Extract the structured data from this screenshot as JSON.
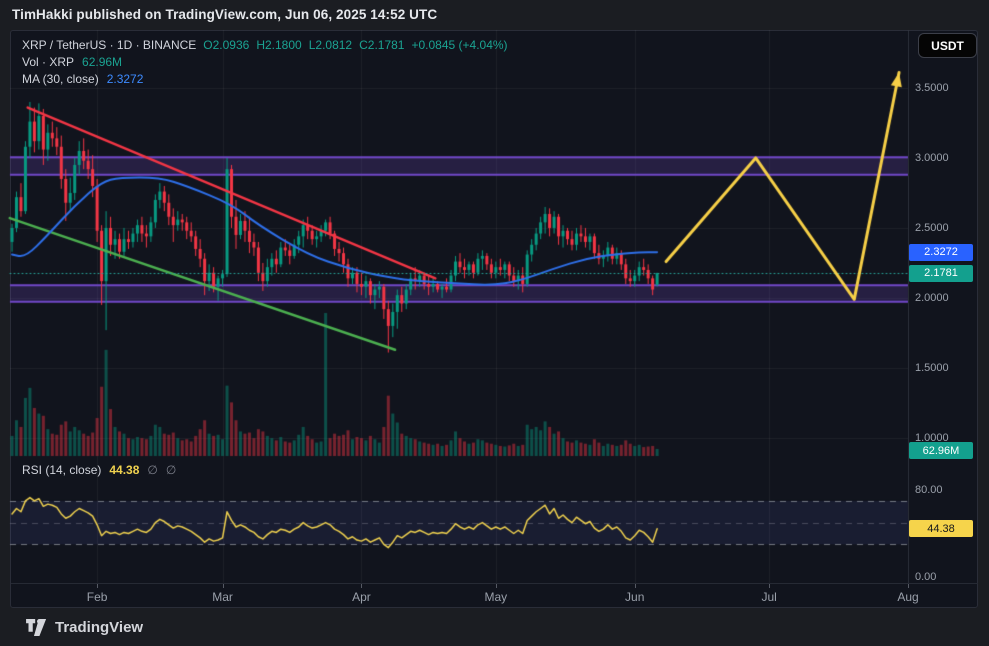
{
  "banner": {
    "text": "TimHakki published on TradingView.com, Jun 06, 2025 14:52 UTC"
  },
  "panel": {
    "legend": {
      "title": "XRP / TetherUS · 1D · BINANCE",
      "ohlc": [
        {
          "label": "O",
          "value": "2.0936"
        },
        {
          "label": "H",
          "value": "2.1800"
        },
        {
          "label": "L",
          "value": "2.0812"
        },
        {
          "label": "C",
          "value": "2.1781"
        }
      ],
      "change": "+0.0845 (+4.04%)",
      "vol_label": "Vol · XRP",
      "vol_value": "62.96M",
      "ma_label": "MA (30, close)",
      "ma_value": "2.3272"
    },
    "rsi_legend": {
      "label": "RSI (14, close)",
      "value": "44.38",
      "empty1": "∅",
      "empty2": "∅"
    },
    "currency_button": "USDT"
  },
  "footer": {
    "brand": "TradingView"
  },
  "colors": {
    "up": "#089981",
    "down": "#F23645",
    "volume_up": "rgba(8,153,129,0.45)",
    "volume_down": "rgba(242,54,69,0.45)",
    "ma": "#2E6FE8",
    "trend_red": "#F23645",
    "trend_green": "#4CAF50",
    "projection": "#F6CF47",
    "band_line": "#7048C8",
    "band_fill": "rgba(112,72,200,0.22)",
    "price_line": "#26A69A",
    "rsi": "#F0D24F",
    "grid": "rgba(255,255,255,0.055)",
    "rsi_fill": "rgba(76,82,175,0.14)",
    "rsi_dash": "rgba(150,153,162,0.75)",
    "rsi_dash_mid": "rgba(150,153,162,0.38)"
  },
  "chart_data": {
    "type": "candlestick",
    "title": "XRP / TetherUS 1D BINANCE",
    "ylim": [
      0.871,
      3.914
    ],
    "price_ticks": [
      "3.5000",
      "3.0000",
      "2.5000",
      "2.0000",
      "1.5000",
      "1.0000"
    ],
    "rsi_ticks": [
      "80.00",
      "0.00"
    ],
    "months": [
      [
        "Feb",
        19
      ],
      [
        "Mar",
        47
      ],
      [
        "Apr",
        78
      ],
      [
        "May",
        108
      ],
      [
        "Jun",
        139
      ],
      [
        "Jul",
        169
      ],
      [
        "Aug",
        200
      ]
    ],
    "last_price": 2.1781,
    "ma_last": 2.3272,
    "rsi_last": 44.38,
    "last_volume_m": 62.96,
    "volume_max_m": 1280,
    "rsi_levels": [
      70,
      50,
      30
    ],
    "rsi_band": [
      30,
      70
    ],
    "bands": [
      {
        "from": 2.88,
        "to": 3.005
      },
      {
        "from": 1.973,
        "to": 2.09
      }
    ],
    "trendlines": [
      {
        "color": "trend_red",
        "i1": 3.5,
        "p1": 3.36,
        "i2": 94.5,
        "p2": 2.14
      },
      {
        "color": "trend_green",
        "i1": -0.5,
        "p1": 2.57,
        "i2": 85.5,
        "p2": 1.63
      }
    ],
    "projection": [
      [
        146,
        2.26
      ],
      [
        166,
        3.0
      ],
      [
        188,
        1.99
      ],
      [
        198,
        3.61
      ]
    ],
    "ma_points": [
      [
        0,
        2.31
      ],
      [
        3,
        2.29
      ],
      [
        8,
        2.45
      ],
      [
        14,
        2.66
      ],
      [
        20,
        2.83
      ],
      [
        24,
        2.86
      ],
      [
        33,
        2.86
      ],
      [
        39,
        2.8
      ],
      [
        49,
        2.67
      ],
      [
        55,
        2.52
      ],
      [
        66,
        2.31
      ],
      [
        75,
        2.21
      ],
      [
        84,
        2.145
      ],
      [
        91,
        2.12
      ],
      [
        99,
        2.105
      ],
      [
        107,
        2.09
      ],
      [
        113,
        2.12
      ],
      [
        121,
        2.21
      ],
      [
        128,
        2.28
      ],
      [
        135,
        2.315
      ],
      [
        140,
        2.325
      ],
      [
        144,
        2.3272
      ]
    ],
    "candles": [
      [
        2.4,
        2.53,
        2.33,
        2.5
      ],
      [
        2.5,
        2.76,
        2.47,
        2.72
      ],
      [
        2.72,
        2.82,
        2.58,
        2.62
      ],
      [
        2.62,
        3.12,
        2.6,
        3.08
      ],
      [
        3.08,
        3.4,
        3.0,
        3.26
      ],
      [
        3.26,
        3.36,
        3.04,
        3.12
      ],
      [
        3.12,
        3.39,
        3.06,
        3.3
      ],
      [
        3.3,
        3.35,
        2.95,
        3.06
      ],
      [
        3.06,
        3.24,
        2.98,
        3.18
      ],
      [
        3.18,
        3.26,
        3.08,
        3.14
      ],
      [
        3.14,
        3.22,
        3.02,
        3.08
      ],
      [
        3.08,
        3.16,
        2.78,
        2.85
      ],
      [
        2.85,
        2.92,
        2.55,
        2.68
      ],
      [
        2.68,
        2.86,
        2.62,
        2.75
      ],
      [
        2.75,
        3.0,
        2.7,
        2.95
      ],
      [
        2.95,
        3.12,
        2.88,
        3.05
      ],
      [
        3.05,
        3.14,
        2.92,
        2.98
      ],
      [
        2.98,
        3.06,
        2.85,
        2.92
      ],
      [
        2.92,
        3.02,
        2.72,
        2.8
      ],
      [
        2.8,
        2.85,
        2.4,
        2.48
      ],
      [
        2.48,
        2.52,
        1.95,
        2.12
      ],
      [
        2.12,
        2.62,
        1.77,
        2.5
      ],
      [
        2.5,
        2.58,
        2.3,
        2.38
      ],
      [
        2.38,
        2.48,
        2.28,
        2.42
      ],
      [
        2.42,
        2.46,
        2.28,
        2.33
      ],
      [
        2.33,
        2.5,
        2.3,
        2.42
      ],
      [
        2.42,
        2.48,
        2.35,
        2.4
      ],
      [
        2.4,
        2.5,
        2.36,
        2.46
      ],
      [
        2.46,
        2.56,
        2.4,
        2.52
      ],
      [
        2.52,
        2.58,
        2.4,
        2.46
      ],
      [
        2.46,
        2.52,
        2.36,
        2.44
      ],
      [
        2.44,
        2.58,
        2.4,
        2.54
      ],
      [
        2.54,
        2.74,
        2.5,
        2.7
      ],
      [
        2.7,
        2.82,
        2.64,
        2.76
      ],
      [
        2.76,
        2.8,
        2.62,
        2.68
      ],
      [
        2.68,
        2.74,
        2.52,
        2.58
      ],
      [
        2.58,
        2.64,
        2.4,
        2.52
      ],
      [
        2.52,
        2.62,
        2.48,
        2.56
      ],
      [
        2.56,
        2.6,
        2.48,
        2.54
      ],
      [
        2.54,
        2.58,
        2.42,
        2.48
      ],
      [
        2.48,
        2.54,
        2.4,
        2.44
      ],
      [
        2.44,
        2.48,
        2.3,
        2.35
      ],
      [
        2.35,
        2.42,
        2.22,
        2.28
      ],
      [
        2.28,
        2.32,
        2.02,
        2.12
      ],
      [
        2.12,
        2.24,
        2.05,
        2.18
      ],
      [
        2.18,
        2.22,
        2.04,
        2.08
      ],
      [
        2.08,
        2.16,
        1.98,
        2.14
      ],
      [
        2.14,
        2.2,
        2.08,
        2.17
      ],
      [
        2.17,
        3.0,
        2.15,
        2.92
      ],
      [
        2.92,
        2.95,
        2.5,
        2.58
      ],
      [
        2.58,
        2.7,
        2.35,
        2.45
      ],
      [
        2.45,
        2.6,
        2.42,
        2.55
      ],
      [
        2.55,
        2.62,
        2.4,
        2.48
      ],
      [
        2.48,
        2.58,
        2.32,
        2.4
      ],
      [
        2.4,
        2.46,
        2.3,
        2.36
      ],
      [
        2.36,
        2.4,
        2.12,
        2.18
      ],
      [
        2.18,
        2.25,
        2.05,
        2.12
      ],
      [
        2.12,
        2.28,
        2.08,
        2.22
      ],
      [
        2.22,
        2.32,
        2.16,
        2.28
      ],
      [
        2.28,
        2.34,
        2.18,
        2.24
      ],
      [
        2.24,
        2.4,
        2.22,
        2.36
      ],
      [
        2.36,
        2.42,
        2.3,
        2.34
      ],
      [
        2.34,
        2.38,
        2.24,
        2.3
      ],
      [
        2.3,
        2.42,
        2.28,
        2.38
      ],
      [
        2.38,
        2.48,
        2.32,
        2.44
      ],
      [
        2.44,
        2.56,
        2.36,
        2.52
      ],
      [
        2.52,
        2.58,
        2.42,
        2.48
      ],
      [
        2.48,
        2.52,
        2.38,
        2.42
      ],
      [
        2.42,
        2.48,
        2.36,
        2.44
      ],
      [
        2.44,
        2.52,
        2.4,
        2.48
      ],
      [
        2.48,
        2.56,
        2.44,
        2.54
      ],
      [
        2.54,
        2.58,
        2.42,
        2.46
      ],
      [
        2.46,
        2.48,
        2.3,
        2.35
      ],
      [
        2.35,
        2.4,
        2.26,
        2.32
      ],
      [
        2.32,
        2.36,
        2.18,
        2.24
      ],
      [
        2.24,
        2.28,
        2.08,
        2.14
      ],
      [
        2.14,
        2.22,
        2.1,
        2.18
      ],
      [
        2.18,
        2.22,
        2.04,
        2.1
      ],
      [
        2.1,
        2.18,
        2.02,
        2.08
      ],
      [
        2.08,
        2.16,
        2.0,
        2.12
      ],
      [
        2.12,
        2.14,
        1.96,
        2.02
      ],
      [
        2.02,
        2.1,
        1.92,
        2.06
      ],
      [
        2.06,
        2.12,
        2.0,
        2.08
      ],
      [
        2.08,
        2.1,
        1.85,
        1.92
      ],
      [
        1.92,
        1.98,
        1.61,
        1.8
      ],
      [
        1.8,
        1.96,
        1.72,
        1.9
      ],
      [
        1.9,
        2.06,
        1.78,
        2.02
      ],
      [
        2.02,
        2.08,
        1.9,
        1.96
      ],
      [
        1.96,
        2.1,
        1.92,
        2.06
      ],
      [
        2.06,
        2.18,
        2.02,
        2.14
      ],
      [
        2.14,
        2.22,
        2.06,
        2.12
      ],
      [
        2.12,
        2.2,
        2.08,
        2.16
      ],
      [
        2.16,
        2.18,
        2.06,
        2.1
      ],
      [
        2.1,
        2.16,
        2.02,
        2.08
      ],
      [
        2.08,
        2.14,
        2.04,
        2.1
      ],
      [
        2.1,
        2.12,
        2.04,
        2.06
      ],
      [
        2.06,
        2.1,
        2.0,
        2.08
      ],
      [
        2.08,
        2.14,
        2.04,
        2.06
      ],
      [
        2.06,
        2.2,
        2.04,
        2.16
      ],
      [
        2.16,
        2.3,
        2.12,
        2.26
      ],
      [
        2.26,
        2.32,
        2.18,
        2.22
      ],
      [
        2.22,
        2.28,
        2.14,
        2.2
      ],
      [
        2.2,
        2.26,
        2.16,
        2.24
      ],
      [
        2.24,
        2.26,
        2.14,
        2.18
      ],
      [
        2.18,
        2.32,
        2.16,
        2.28
      ],
      [
        2.28,
        2.34,
        2.2,
        2.3
      ],
      [
        2.3,
        2.32,
        2.2,
        2.24
      ],
      [
        2.24,
        2.28,
        2.14,
        2.18
      ],
      [
        2.18,
        2.26,
        2.14,
        2.22
      ],
      [
        2.22,
        2.28,
        2.16,
        2.2
      ],
      [
        2.2,
        2.26,
        2.14,
        2.24
      ],
      [
        2.24,
        2.26,
        2.12,
        2.16
      ],
      [
        2.16,
        2.22,
        2.08,
        2.12
      ],
      [
        2.12,
        2.2,
        2.06,
        2.16
      ],
      [
        2.16,
        2.22,
        2.04,
        2.1
      ],
      [
        2.1,
        2.34,
        2.08,
        2.31
      ],
      [
        2.31,
        2.42,
        2.26,
        2.38
      ],
      [
        2.38,
        2.5,
        2.34,
        2.46
      ],
      [
        2.46,
        2.58,
        2.42,
        2.54
      ],
      [
        2.54,
        2.65,
        2.46,
        2.6
      ],
      [
        2.6,
        2.64,
        2.44,
        2.5
      ],
      [
        2.5,
        2.62,
        2.46,
        2.58
      ],
      [
        2.58,
        2.6,
        2.38,
        2.44
      ],
      [
        2.44,
        2.52,
        2.36,
        2.48
      ],
      [
        2.48,
        2.5,
        2.38,
        2.42
      ],
      [
        2.42,
        2.48,
        2.34,
        2.38
      ],
      [
        2.38,
        2.5,
        2.34,
        2.46
      ],
      [
        2.46,
        2.52,
        2.4,
        2.44
      ],
      [
        2.44,
        2.5,
        2.36,
        2.4
      ],
      [
        2.4,
        2.46,
        2.34,
        2.44
      ],
      [
        2.44,
        2.46,
        2.28,
        2.32
      ],
      [
        2.32,
        2.38,
        2.24,
        2.28
      ],
      [
        2.28,
        2.34,
        2.22,
        2.3
      ],
      [
        2.3,
        2.4,
        2.26,
        2.36
      ],
      [
        2.36,
        2.38,
        2.24,
        2.28
      ],
      [
        2.28,
        2.36,
        2.24,
        2.32
      ],
      [
        2.32,
        2.34,
        2.2,
        2.24
      ],
      [
        2.24,
        2.28,
        2.1,
        2.14
      ],
      [
        2.14,
        2.2,
        2.08,
        2.12
      ],
      [
        2.12,
        2.2,
        2.08,
        2.16
      ],
      [
        2.16,
        2.26,
        2.12,
        2.22
      ],
      [
        2.22,
        2.28,
        2.16,
        2.2
      ],
      [
        2.2,
        2.24,
        2.1,
        2.14
      ],
      [
        2.14,
        2.16,
        2.02,
        2.06
      ],
      [
        2.0936,
        2.18,
        2.0812,
        2.1781
      ]
    ],
    "volume_m": [
      180,
      320,
      260,
      520,
      610,
      430,
      380,
      360,
      240,
      200,
      190,
      280,
      310,
      220,
      260,
      230,
      200,
      180,
      210,
      340,
      620,
      950,
      420,
      260,
      220,
      200,
      160,
      150,
      170,
      160,
      150,
      180,
      280,
      260,
      200,
      190,
      210,
      160,
      140,
      150,
      130,
      180,
      240,
      320,
      200,
      180,
      190,
      150,
      630,
      480,
      320,
      220,
      200,
      210,
      160,
      240,
      220,
      180,
      160,
      140,
      170,
      130,
      120,
      140,
      190,
      260,
      180,
      150,
      120,
      130,
      1280,
      160,
      200,
      180,
      190,
      230,
      150,
      170,
      160,
      140,
      180,
      150,
      120,
      260,
      540,
      380,
      300,
      200,
      180,
      160,
      150,
      130,
      120,
      110,
      100,
      110,
      90,
      100,
      140,
      220,
      160,
      130,
      110,
      120,
      150,
      140,
      120,
      110,
      100,
      90,
      85,
      95,
      110,
      90,
      100,
      280,
      240,
      260,
      230,
      310,
      260,
      200,
      220,
      160,
      130,
      120,
      140,
      120,
      110,
      100,
      150,
      120,
      90,
      110,
      100,
      90,
      100,
      140,
      110,
      90,
      100,
      80,
      85,
      90,
      62.96
    ],
    "rsi": [
      58,
      63,
      60,
      70,
      73,
      70,
      72,
      65,
      67,
      66,
      64,
      58,
      54,
      56,
      60,
      63,
      61,
      59,
      56,
      48,
      38,
      42,
      40,
      41,
      39,
      41,
      40,
      42,
      44,
      42,
      41,
      44,
      50,
      53,
      51,
      48,
      45,
      47,
      46,
      44,
      42,
      39,
      36,
      32,
      35,
      33,
      34,
      36,
      60,
      52,
      46,
      48,
      46,
      43,
      41,
      37,
      35,
      39,
      42,
      41,
      44,
      43,
      41,
      44,
      46,
      50,
      47,
      45,
      46,
      48,
      50,
      48,
      44,
      42,
      39,
      35,
      37,
      34,
      33,
      35,
      32,
      34,
      36,
      30,
      27,
      32,
      38,
      36,
      39,
      42,
      41,
      43,
      41,
      39,
      41,
      40,
      41,
      40,
      44,
      49,
      46,
      44,
      46,
      44,
      48,
      50,
      47,
      44,
      46,
      44,
      46,
      43,
      40,
      43,
      40,
      52,
      56,
      60,
      63,
      66,
      58,
      63,
      54,
      57,
      53,
      50,
      55,
      52,
      49,
      51,
      45,
      42,
      44,
      48,
      44,
      46,
      42,
      36,
      34,
      38,
      43,
      41,
      37,
      32,
      44.38
    ]
  }
}
